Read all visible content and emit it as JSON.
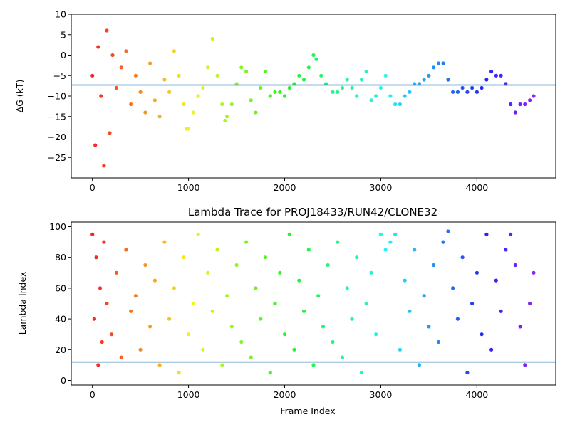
{
  "chart_data": [
    {
      "type": "scatter",
      "title": "",
      "xlabel": "",
      "ylabel": "ΔG (kT)",
      "xlim": [
        -220,
        4820
      ],
      "ylim": [
        -30,
        10
      ],
      "xticks": [
        0,
        1000,
        2000,
        3000,
        4000
      ],
      "yticks": [
        -25,
        -20,
        -15,
        -10,
        -5,
        0,
        5,
        10
      ],
      "grid": false,
      "colormap": "rainbow (red → violet with increasing frame index)",
      "hline": {
        "y": -7.3,
        "color": "#1f77b4"
      },
      "series": [
        {
          "x": [
            0,
            30,
            60,
            90,
            120,
            150,
            180,
            210,
            250,
            300,
            350,
            400,
            450,
            500,
            550,
            600,
            650,
            700,
            750,
            800,
            850,
            900,
            950,
            980,
            1000,
            1050,
            1100,
            1150,
            1200,
            1250,
            1300,
            1350,
            1380,
            1400,
            1450,
            1500,
            1550,
            1600,
            1650,
            1700,
            1750,
            1800,
            1850,
            1900,
            1950,
            2000,
            2050,
            2100,
            2150,
            2200,
            2250,
            2300,
            2330,
            2380,
            2430,
            2500,
            2550,
            2600,
            2650,
            2700,
            2750,
            2800,
            2850,
            2900,
            2950,
            3000,
            3050,
            3100,
            3150,
            3200,
            3250,
            3300,
            3350,
            3400,
            3450,
            3500,
            3550,
            3600,
            3650,
            3700,
            3750,
            3800,
            3850,
            3900,
            3950,
            4000,
            4050,
            4100,
            4150,
            4200,
            4250,
            4300,
            4350,
            4400,
            4450,
            4500,
            4550,
            4590
          ],
          "y": [
            -5,
            -22,
            2,
            -10,
            -27,
            6,
            -19,
            0,
            -8,
            -3,
            1,
            -12,
            -5,
            -9,
            -14,
            -2,
            -11,
            -15,
            -6,
            -9,
            1,
            -5,
            -12,
            -18,
            -18,
            -14,
            -10,
            -8,
            -3,
            4,
            -5,
            -12,
            -16,
            -15,
            -12,
            -7,
            -3,
            -4,
            -11,
            -14,
            -8,
            -4,
            -10,
            -9,
            -9,
            -10,
            -8,
            -7,
            -5,
            -6,
            -3,
            0,
            -1,
            -5,
            -7,
            -9,
            -9,
            -8,
            -6,
            -8,
            -10,
            -6,
            -4,
            -11,
            -10,
            -8,
            -5,
            -10,
            -12,
            -12,
            -10,
            -9,
            -7,
            -7,
            -6,
            -5,
            -3,
            -2,
            -2,
            -6,
            -9,
            -9,
            -8,
            -9,
            -8,
            -9,
            -8,
            -6,
            -4,
            -5,
            -5,
            -7,
            -12,
            -14,
            -12,
            -12,
            -11,
            -10
          ]
        }
      ]
    },
    {
      "type": "scatter",
      "title": "Lambda Trace for PROJ18433/RUN42/CLONE32",
      "xlabel": "Frame Index",
      "ylabel": "Lambda Index",
      "xlim": [
        -220,
        4820
      ],
      "ylim": [
        -3,
        103
      ],
      "xticks": [
        0,
        1000,
        2000,
        3000,
        4000
      ],
      "yticks": [
        0,
        20,
        40,
        60,
        80,
        100
      ],
      "grid": false,
      "colormap": "rainbow (red → violet with increasing frame index)",
      "hline": {
        "y": 12,
        "color": "#1f77b4"
      },
      "series": [
        {
          "description_x_range": [
            0,
            4590
          ],
          "y_range": [
            0,
            100
          ],
          "x": [
            0,
            20,
            40,
            60,
            80,
            100,
            120,
            150,
            200,
            250,
            300,
            350,
            400,
            450,
            500,
            550,
            600,
            650,
            700,
            750,
            800,
            850,
            900,
            950,
            1000,
            1050,
            1100,
            1150,
            1200,
            1250,
            1300,
            1350,
            1400,
            1450,
            1500,
            1550,
            1600,
            1650,
            1700,
            1750,
            1800,
            1850,
            1900,
            1950,
            2000,
            2050,
            2100,
            2150,
            2200,
            2250,
            2300,
            2350,
            2400,
            2450,
            2500,
            2550,
            2600,
            2650,
            2700,
            2750,
            2800,
            2850,
            2900,
            2950,
            3000,
            3050,
            3100,
            3150,
            3200,
            3250,
            3300,
            3350,
            3400,
            3450,
            3500,
            3550,
            3600,
            3650,
            3700,
            3750,
            3800,
            3850,
            3900,
            3950,
            4000,
            4050,
            4100,
            4150,
            4200,
            4250,
            4300,
            4350,
            4400,
            4450,
            4500,
            4550,
            4590
          ],
          "y": [
            95,
            40,
            80,
            10,
            60,
            25,
            90,
            50,
            30,
            70,
            15,
            85,
            45,
            55,
            20,
            75,
            35,
            65,
            10,
            90,
            40,
            60,
            5,
            80,
            30,
            50,
            95,
            20,
            70,
            45,
            85,
            10,
            55,
            35,
            75,
            25,
            90,
            15,
            60,
            40,
            80,
            5,
            50,
            70,
            30,
            95,
            20,
            65,
            45,
            85,
            10,
            55,
            35,
            75,
            25,
            90,
            15,
            60,
            40,
            80,
            5,
            50,
            70,
            30,
            95,
            85,
            90,
            95,
            20,
            65,
            45,
            85,
            10,
            55,
            35,
            75,
            25,
            90,
            97,
            60,
            40,
            80,
            5,
            50,
            70,
            30,
            95,
            20,
            65,
            45,
            85,
            95,
            75,
            35,
            10,
            50,
            70
          ]
        }
      ]
    }
  ]
}
